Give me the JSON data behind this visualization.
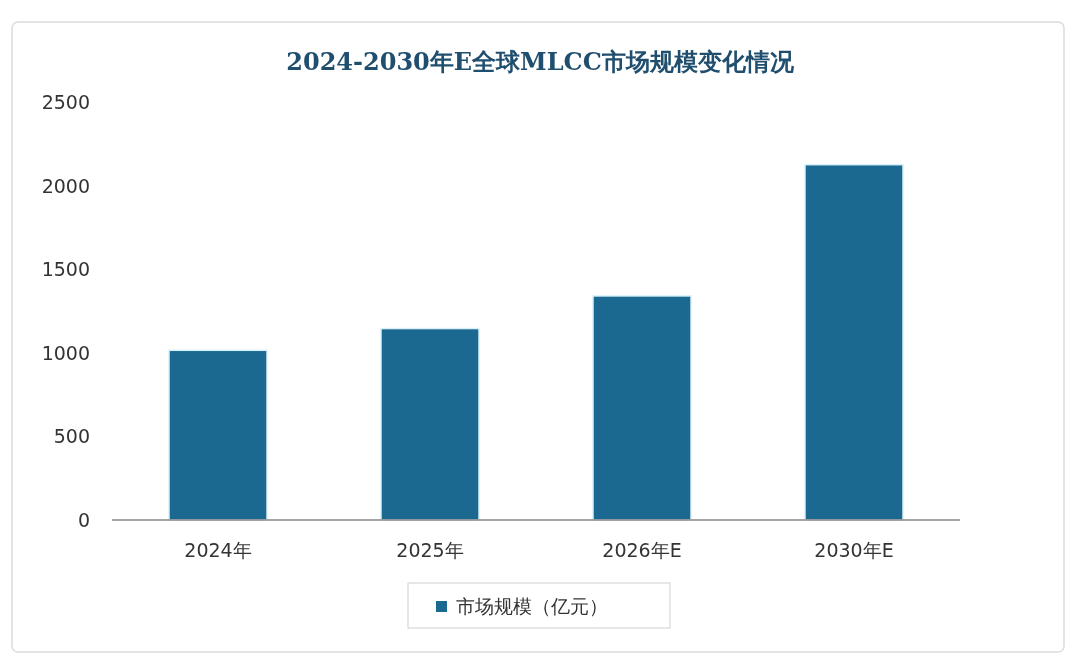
{
  "chart_data": {
    "type": "bar",
    "title": "2024-2030年E全球MLCC市场规模变化情况",
    "categories": [
      "2024年",
      "2025年",
      "2026年E",
      "2030年E"
    ],
    "series": [
      {
        "name": "市场规模（亿元）",
        "color": "#1b6890",
        "values": [
          1015,
          1145,
          1340,
          2125
        ]
      }
    ],
    "ylim": [
      0,
      2500
    ],
    "yticks": [
      0,
      500,
      1000,
      1500,
      2000,
      2500
    ],
    "legend": "bottom"
  }
}
